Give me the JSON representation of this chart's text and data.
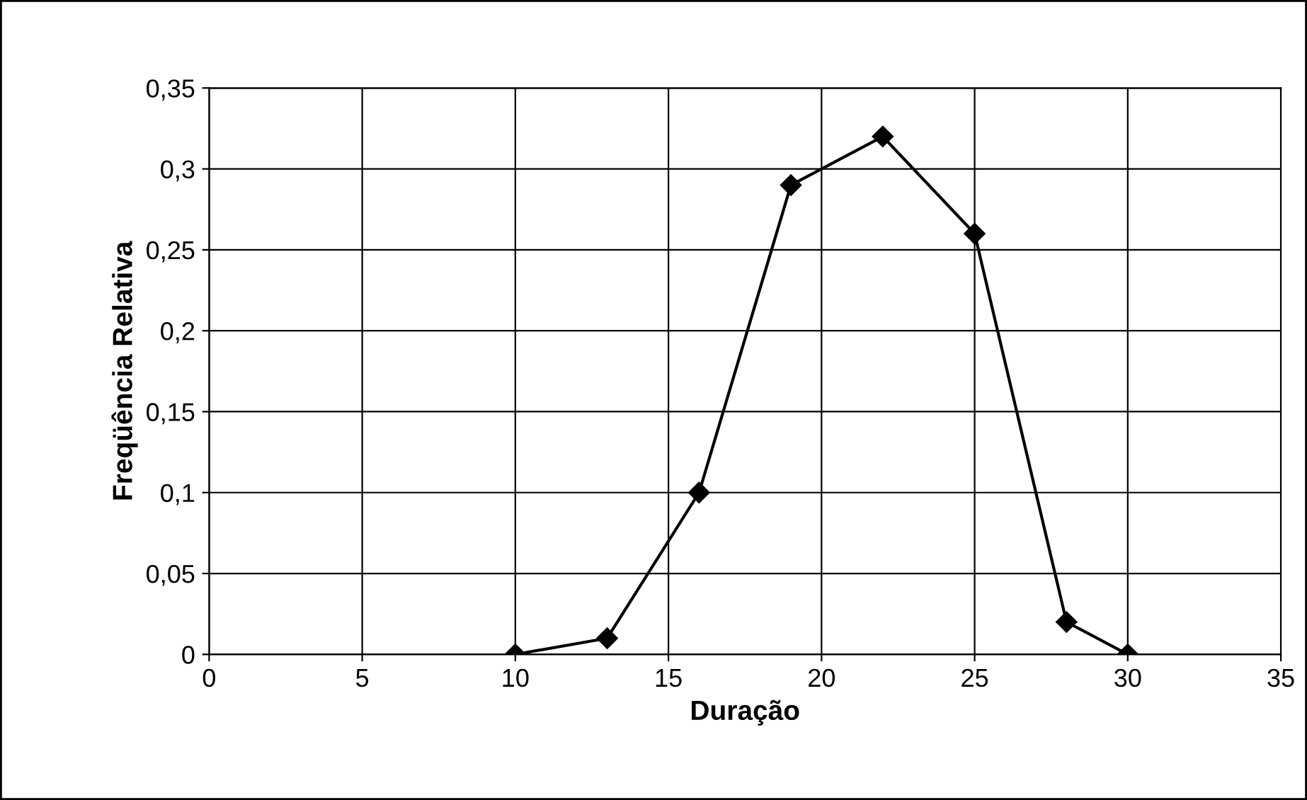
{
  "chart_data": {
    "type": "line",
    "xlabel": "Duração",
    "ylabel": "Freqüência Relativa",
    "x": [
      10,
      13,
      16,
      19,
      22,
      25,
      28,
      30
    ],
    "series": [
      {
        "color": "#000000",
        "values": [
          0,
          0.01,
          0.1,
          0.29,
          0.32,
          0.26,
          0.02,
          0
        ]
      }
    ],
    "xlim": [
      0,
      35
    ],
    "xticks": [
      0,
      5,
      10,
      15,
      20,
      25,
      30,
      35
    ],
    "ylim": [
      0,
      0.35
    ],
    "yticks": [
      {
        "value": 0,
        "label": "0"
      },
      {
        "value": 0.05,
        "label": "0,05"
      },
      {
        "value": 0.1,
        "label": "0,1"
      },
      {
        "value": 0.15,
        "label": "0,15"
      },
      {
        "value": 0.2,
        "label": "0,2"
      },
      {
        "value": 0.25,
        "label": "0,25"
      },
      {
        "value": 0.3,
        "label": "0,3"
      },
      {
        "value": 0.35,
        "label": "0,35"
      }
    ],
    "grid": true,
    "marker": "diamond",
    "line_style": "solid"
  }
}
